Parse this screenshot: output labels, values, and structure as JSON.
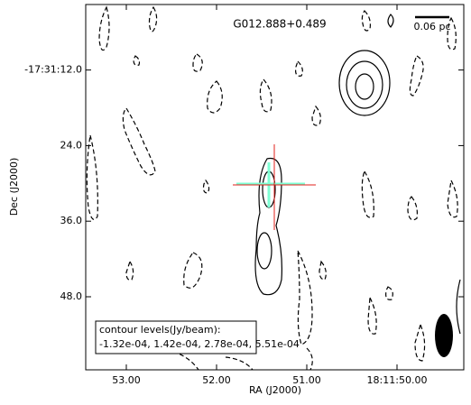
{
  "chart_data": {
    "type": "contour",
    "title": "G012.888+0.489",
    "scale_bar_label": "0.06 pc",
    "xlabel": "RA (J2000)",
    "ylabel": "Dec (J2000)",
    "xlim": [
      53.45,
      49.26
    ],
    "xticks": [
      {
        "value": 53.0,
        "label": "53.00"
      },
      {
        "value": 52.0,
        "label": "52.00"
      },
      {
        "value": 51.0,
        "label": "51.00"
      },
      {
        "value": 50.0,
        "label": "18:11:50.00"
      }
    ],
    "ylim": [
      1.6,
      59.6
    ],
    "yticks": [
      {
        "value": 12,
        "label": "-17:31:12.0"
      },
      {
        "value": 24,
        "label": "24.0"
      },
      {
        "value": 36,
        "label": "36.0"
      },
      {
        "value": 48,
        "label": "48.0"
      }
    ],
    "legend_title": "contour levels(Jy/beam):",
    "legend_levels": "-1.32e-04, 1.42e-04, 2.78e-04, 5.51e-04"
  }
}
